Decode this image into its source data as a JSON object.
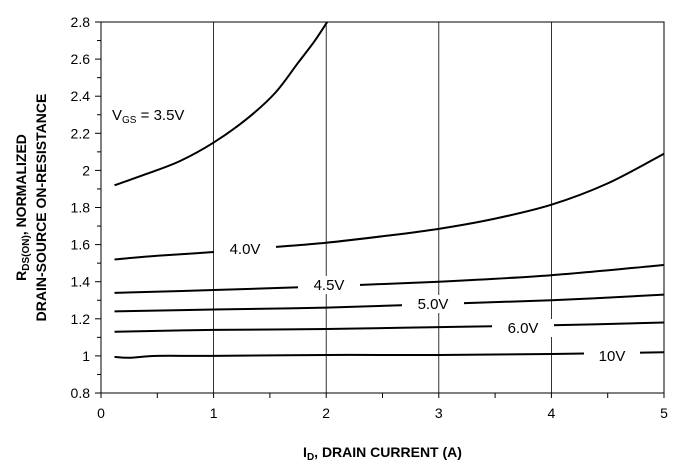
{
  "chart_data": {
    "type": "line",
    "xlabel": {
      "main": "I",
      "sub": "D",
      "rest": ", DRAIN CURRENT (A)"
    },
    "ylabel": {
      "line1_main": "R",
      "line1_sub": "DS(ON)",
      "line1_rest": ", NORMALIZED",
      "line2": "DRAIN-SOURCE ON-RESISTANCE"
    },
    "xlim": [
      0,
      5
    ],
    "ylim": [
      0.8,
      2.8
    ],
    "x_ticks": [
      "0",
      "1",
      "2",
      "3",
      "4",
      "5"
    ],
    "y_ticks": [
      "0.8",
      "1",
      "1.2",
      "1.4",
      "1.6",
      "1.8",
      "2",
      "2.2",
      "2.4",
      "2.6",
      "2.8"
    ],
    "grid": {
      "vertical": true,
      "horizontal": false
    },
    "series": [
      {
        "label": {
          "prefix": "V",
          "sub": "GS",
          "suffix": " = 3.5V"
        },
        "points": [
          [
            0.12,
            1.92
          ],
          [
            0.4,
            1.98
          ],
          [
            0.7,
            2.05
          ],
          [
            1.0,
            2.15
          ],
          [
            1.3,
            2.28
          ],
          [
            1.55,
            2.42
          ],
          [
            1.75,
            2.58
          ],
          [
            1.9,
            2.7
          ],
          [
            2.03,
            2.82
          ]
        ]
      },
      {
        "label": {
          "text": "4.0V"
        },
        "points": [
          [
            0.12,
            1.52
          ],
          [
            0.5,
            1.54
          ],
          [
            1.0,
            1.56
          ],
          [
            1.5,
            1.585
          ],
          [
            2.0,
            1.61
          ],
          [
            2.5,
            1.645
          ],
          [
            3.0,
            1.685
          ],
          [
            3.5,
            1.74
          ],
          [
            4.0,
            1.815
          ],
          [
            4.5,
            1.93
          ],
          [
            5.0,
            2.09
          ]
        ]
      },
      {
        "label": {
          "text": "4.5V"
        },
        "points": [
          [
            0.12,
            1.34
          ],
          [
            1.0,
            1.355
          ],
          [
            2.0,
            1.375
          ],
          [
            3.0,
            1.4
          ],
          [
            4.0,
            1.435
          ],
          [
            5.0,
            1.49
          ]
        ]
      },
      {
        "label": {
          "text": "5.0V"
        },
        "points": [
          [
            0.12,
            1.24
          ],
          [
            1.0,
            1.25
          ],
          [
            2.0,
            1.26
          ],
          [
            3.0,
            1.28
          ],
          [
            4.0,
            1.3
          ],
          [
            5.0,
            1.33
          ]
        ]
      },
      {
        "label": {
          "text": "6.0V"
        },
        "points": [
          [
            0.12,
            1.13
          ],
          [
            1.0,
            1.14
          ],
          [
            2.0,
            1.145
          ],
          [
            3.0,
            1.155
          ],
          [
            4.0,
            1.165
          ],
          [
            5.0,
            1.18
          ]
        ]
      },
      {
        "label": {
          "text": "10V"
        },
        "points": [
          [
            0.12,
            0.995
          ],
          [
            0.25,
            0.99
          ],
          [
            0.5,
            1.0
          ],
          [
            1.0,
            1.0
          ],
          [
            2.0,
            1.005
          ],
          [
            3.0,
            1.005
          ],
          [
            4.0,
            1.01
          ],
          [
            5.0,
            1.02
          ]
        ]
      }
    ]
  }
}
